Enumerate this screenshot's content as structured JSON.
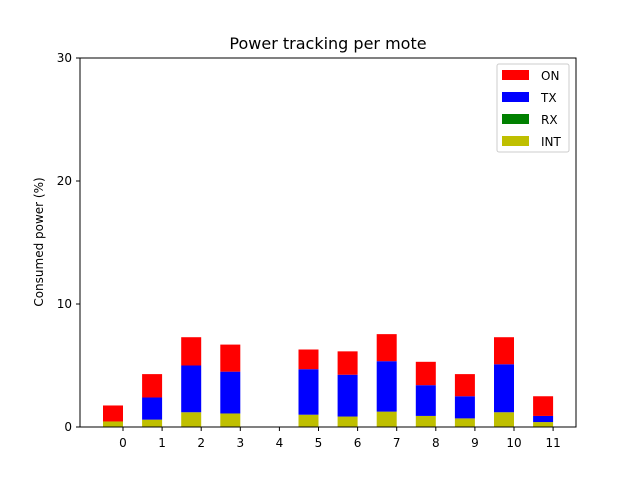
{
  "chart_data": {
    "type": "bar",
    "stacked": true,
    "title": "Power tracking per mote",
    "xlabel": "",
    "ylabel": "Consumed power (%)",
    "categories": [
      "0",
      "1",
      "2",
      "3",
      "4",
      "5",
      "6",
      "7",
      "8",
      "9",
      "10",
      "11"
    ],
    "ylim": [
      0,
      30
    ],
    "yticks": [
      0,
      10,
      20,
      30
    ],
    "legend_position": "top-right",
    "grid": false,
    "series": [
      {
        "name": "INT",
        "color": "#bfbf00",
        "values": [
          0.45,
          0.6,
          1.2,
          1.1,
          0,
          1.0,
          0.85,
          1.25,
          0.9,
          0.7,
          1.2,
          0.4
        ]
      },
      {
        "name": "RX",
        "color": "#008000",
        "values": [
          0,
          0,
          0,
          0,
          0,
          0,
          0,
          0,
          0,
          0,
          0,
          0
        ]
      },
      {
        "name": "TX",
        "color": "#0000ff",
        "values": [
          0,
          1.8,
          3.8,
          3.4,
          0,
          3.7,
          3.4,
          4.1,
          2.5,
          1.8,
          3.9,
          0.5
        ]
      },
      {
        "name": "ON",
        "color": "#ff0000",
        "values": [
          1.3,
          1.9,
          2.3,
          2.2,
          0,
          1.6,
          1.9,
          2.2,
          1.9,
          1.8,
          2.2,
          1.6
        ]
      }
    ],
    "legend_order": [
      "ON",
      "TX",
      "RX",
      "INT"
    ]
  }
}
